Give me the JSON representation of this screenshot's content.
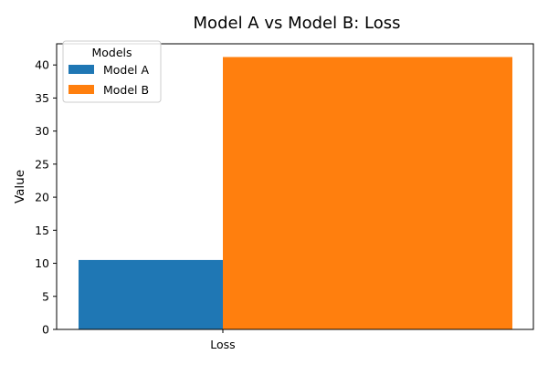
{
  "chart_data": {
    "type": "bar",
    "title": "Model A vs Model B: Loss",
    "xlabel": "",
    "ylabel": "Value",
    "categories": [
      "Loss"
    ],
    "series": [
      {
        "name": "Model A",
        "values": [
          10.5
        ],
        "color": "#1f77b4"
      },
      {
        "name": "Model B",
        "values": [
          41.2
        ],
        "color": "#ff7f0e"
      }
    ],
    "ylim": [
      0,
      43.2
    ],
    "yticks": [
      0,
      5,
      10,
      15,
      20,
      25,
      30,
      35,
      40
    ],
    "grid": false,
    "legend": {
      "title": "Models",
      "placement": "top-left"
    }
  }
}
